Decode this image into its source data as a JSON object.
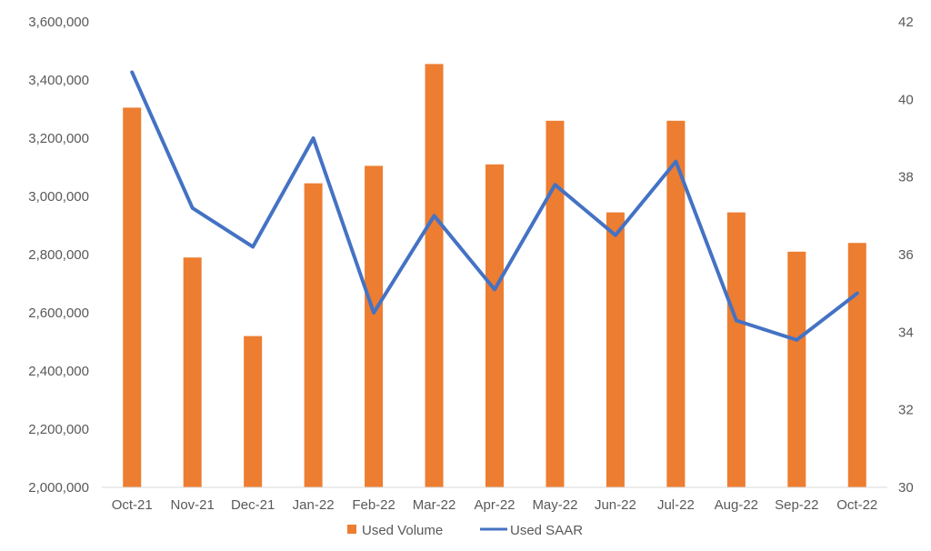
{
  "chart_data": {
    "type": "bar",
    "categories": [
      "Oct-21",
      "Nov-21",
      "Dec-21",
      "Jan-22",
      "Feb-22",
      "Mar-22",
      "Apr-22",
      "May-22",
      "Jun-22",
      "Jul-22",
      "Aug-22",
      "Sep-22",
      "Oct-22"
    ],
    "series": [
      {
        "name": "Used Volume",
        "type": "bar",
        "axis": "left",
        "color": "#ED7D31",
        "values": [
          3305000,
          2790000,
          2520000,
          3045000,
          3105000,
          3455000,
          3110000,
          3260000,
          2945000,
          3260000,
          2945000,
          2810000,
          2840000
        ]
      },
      {
        "name": "Used SAAR",
        "type": "line",
        "axis": "right",
        "color": "#4472C4",
        "values": [
          40.7,
          37.2,
          36.2,
          39.0,
          34.5,
          37.0,
          35.1,
          37.8,
          36.5,
          38.4,
          34.3,
          33.8,
          35.0
        ]
      }
    ],
    "left_axis": {
      "ylim": [
        2000000,
        3600000
      ],
      "ticks": [
        "2,000,000",
        "2,200,000",
        "2,400,000",
        "2,600,000",
        "2,800,000",
        "3,000,000",
        "3,200,000",
        "3,400,000",
        "3,600,000"
      ]
    },
    "right_axis": {
      "ylim": [
        30,
        42
      ],
      "ticks": [
        "30",
        "32",
        "34",
        "36",
        "38",
        "40",
        "42"
      ]
    },
    "legend_position": "bottom",
    "grid": false
  }
}
